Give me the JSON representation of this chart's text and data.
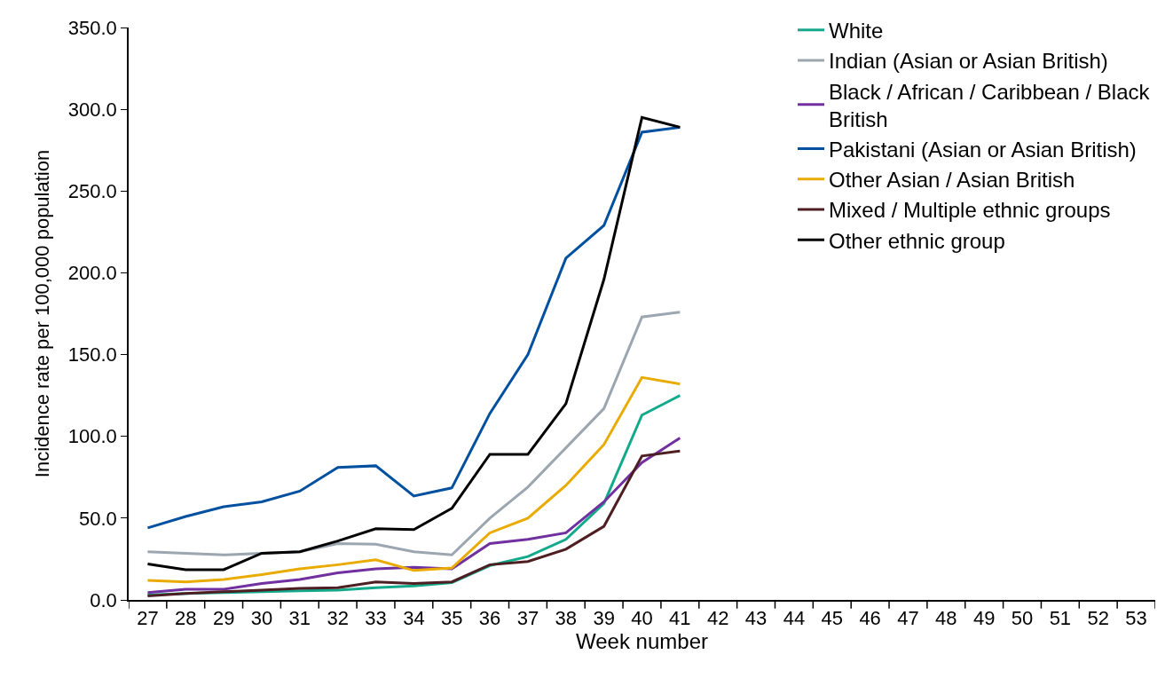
{
  "chart_data": {
    "type": "line",
    "xlabel": "Week number",
    "ylabel": "Incidence rate per 100,000 population",
    "categories": [
      "27",
      "28",
      "29",
      "30",
      "31",
      "32",
      "33",
      "34",
      "35",
      "36",
      "37",
      "38",
      "39",
      "40",
      "41",
      "42",
      "43",
      "44",
      "45",
      "46",
      "47",
      "48",
      "49",
      "50",
      "51",
      "52",
      "53"
    ],
    "series": [
      {
        "name": "White",
        "color": "#13a98b",
        "values": [
          3,
          4,
          4.5,
          5,
          5.5,
          6,
          7.5,
          8.5,
          10.5,
          21,
          26.5,
          37,
          59,
          113,
          125,
          null,
          null,
          null,
          null,
          null,
          null,
          null,
          null,
          null,
          null,
          null,
          null
        ]
      },
      {
        "name": "Indian (Asian or Asian British)",
        "color": "#9ca6b0",
        "values": [
          29.5,
          28.5,
          27.5,
          28.5,
          29.5,
          34.5,
          34,
          29.5,
          27.5,
          50,
          69,
          93,
          117,
          173,
          176,
          null,
          null,
          null,
          null,
          null,
          null,
          null,
          null,
          null,
          null,
          null,
          null
        ]
      },
      {
        "name": "Black / African / Caribbean / Black British",
        "color": "#7030a0",
        "values": [
          4.5,
          6.5,
          6.5,
          10,
          12.5,
          16.5,
          19,
          20,
          19,
          34.5,
          37,
          41,
          60,
          84,
          99,
          null,
          null,
          null,
          null,
          null,
          null,
          null,
          null,
          null,
          null,
          null,
          null
        ]
      },
      {
        "name": "Pakistani (Asian or Asian British)",
        "color": "#0050a0",
        "values": [
          44,
          51,
          57,
          60,
          66.5,
          81,
          82,
          63.5,
          68.5,
          114,
          150,
          209,
          229,
          286,
          289,
          null,
          null,
          null,
          null,
          null,
          null,
          null,
          null,
          null,
          null,
          null,
          null
        ]
      },
      {
        "name": "Other Asian / Asian British",
        "color": "#eaab00",
        "values": [
          12,
          11,
          12.5,
          15.5,
          19,
          21.5,
          24.5,
          18,
          19.5,
          41,
          50,
          70,
          95,
          136,
          132,
          null,
          null,
          null,
          null,
          null,
          null,
          null,
          null,
          null,
          null,
          null,
          null
        ]
      },
      {
        "name": "Mixed / Multiple ethnic groups",
        "color": "#4e1f22",
        "values": [
          2.5,
          4,
          5,
          6,
          7,
          7.5,
          11,
          10,
          11,
          21.5,
          23.5,
          31,
          45,
          88,
          91,
          null,
          null,
          null,
          null,
          null,
          null,
          null,
          null,
          null,
          null,
          null,
          null
        ]
      },
      {
        "name": "Other ethnic group",
        "color": "#000000",
        "values": [
          22,
          18.5,
          18.5,
          28.5,
          29.5,
          36,
          43.5,
          43,
          56,
          89,
          89,
          120,
          196,
          295,
          289,
          null,
          null,
          null,
          null,
          null,
          null,
          null,
          null,
          null,
          null,
          null,
          null
        ]
      }
    ],
    "ylim": [
      0,
      350
    ],
    "yticks": [
      {
        "value": 0,
        "label": "0.0"
      },
      {
        "value": 50,
        "label": "50.0"
      },
      {
        "value": 100,
        "label": "100.0"
      },
      {
        "value": 150,
        "label": "150.0"
      },
      {
        "value": 200,
        "label": "200.0"
      },
      {
        "value": 250,
        "label": "250.0"
      },
      {
        "value": 300,
        "label": "300.0"
      },
      {
        "value": 350,
        "label": "350.0"
      }
    ],
    "legend": "top right",
    "marker": "none",
    "line_style": "solid"
  }
}
